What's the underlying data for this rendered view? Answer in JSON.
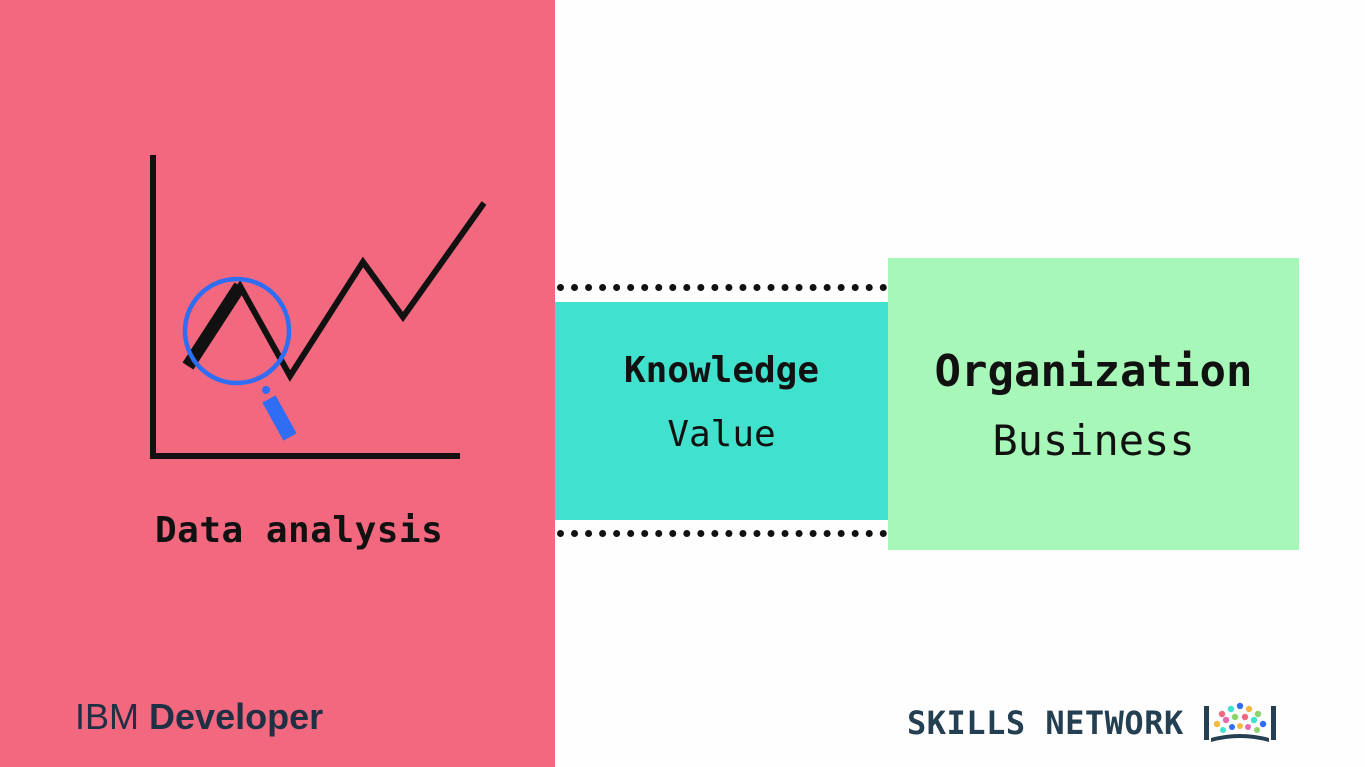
{
  "left_panel": {
    "label": "Data analysis",
    "brand_prefix": "IBM",
    "brand_suffix": "Developer"
  },
  "knowledge_box": {
    "title": "Knowledge",
    "subtitle": "Value"
  },
  "organization_box": {
    "title": "Organization",
    "subtitle": "Business"
  },
  "footer_right": {
    "brand_text": "SKILLS NETWORK",
    "logo_icon": "skills-network-book-icon"
  },
  "colors": {
    "left_panel": "#f2687f",
    "knowledge_box": "#40e2cd",
    "organization_box": "#a7f8b8",
    "magnifier": "#2f6df2",
    "text_dark": "#111111",
    "brand_dark": "#243e52"
  },
  "icons": {
    "chart": "line-chart-icon",
    "magnifier": "magnifying-glass-icon"
  }
}
